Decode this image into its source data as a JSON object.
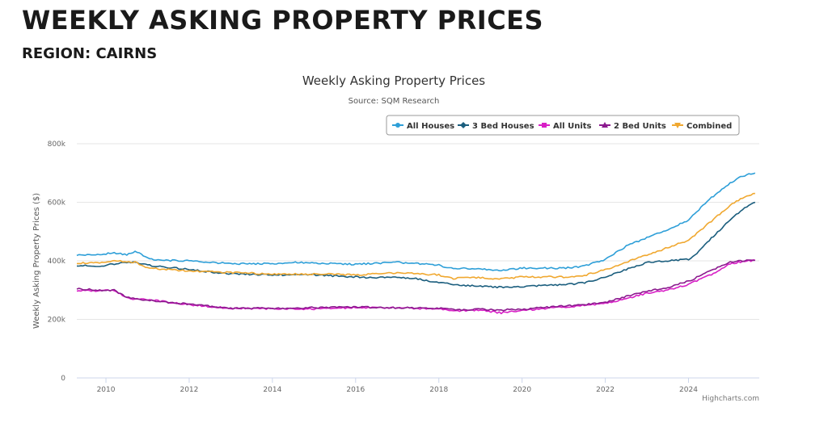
{
  "header": {
    "title": "WEEKLY ASKING PROPERTY PRICES",
    "subtitle": "REGION: CAIRNS"
  },
  "chart_data": {
    "type": "line",
    "title": "Weekly Asking Property Prices",
    "subtitle": "Source: SQM Research",
    "xlabel": "",
    "ylabel": "Weekly Asking Property Prices ($)",
    "credits": "Highcharts.com",
    "xlim": [
      2009.3,
      2025.7
    ],
    "ylim": [
      0,
      800000
    ],
    "x_ticks": [
      2010,
      2012,
      2014,
      2016,
      2018,
      2020,
      2022,
      2024
    ],
    "x_tick_labels": [
      "2010",
      "2012",
      "2014",
      "2016",
      "2018",
      "2020",
      "2022",
      "2024"
    ],
    "y_ticks": [
      0,
      200000,
      400000,
      600000,
      800000
    ],
    "y_tick_labels": [
      "0",
      "200k",
      "400k",
      "600k",
      "800k"
    ],
    "grid": "horizontal",
    "legend_position": "top-right",
    "series": [
      {
        "name": "All Houses",
        "color": "#2e9fd8",
        "x": [
          2009.3,
          2009.8,
          2010.2,
          2010.5,
          2010.7,
          2011.0,
          2011.2,
          2012.0,
          2013.0,
          2014.0,
          2014.5,
          2015.0,
          2016.0,
          2016.5,
          2017.0,
          2017.5,
          2018.0,
          2018.3,
          2019.0,
          2019.5,
          2020.0,
          2020.5,
          2021.0,
          2021.5,
          2022.0,
          2022.5,
          2023.0,
          2023.5,
          2024.0,
          2024.5,
          2025.0,
          2025.3,
          2025.6
        ],
        "values": [
          420000,
          420000,
          428000,
          420000,
          432000,
          412000,
          402000,
          400000,
          390000,
          390000,
          395000,
          392000,
          388000,
          392000,
          395000,
          390000,
          385000,
          375000,
          372000,
          368000,
          375000,
          375000,
          375000,
          382000,
          405000,
          450000,
          480000,
          505000,
          540000,
          610000,
          665000,
          690000,
          700000
        ]
      },
      {
        "name": "3 Bed Houses",
        "color": "#1b5e7e",
        "x": [
          2009.3,
          2009.8,
          2010.2,
          2010.7,
          2011.0,
          2012.0,
          2013.0,
          2014.0,
          2015.0,
          2016.0,
          2016.5,
          2017.0,
          2017.5,
          2018.0,
          2018.5,
          2019.0,
          2019.5,
          2020.0,
          2020.5,
          2021.0,
          2021.5,
          2022.0,
          2022.5,
          2023.0,
          2023.5,
          2024.0,
          2024.2,
          2024.5,
          2025.0,
          2025.3,
          2025.6
        ],
        "values": [
          385000,
          380000,
          390000,
          395000,
          385000,
          370000,
          355000,
          352000,
          352000,
          345000,
          342000,
          345000,
          338000,
          325000,
          318000,
          312000,
          310000,
          312000,
          315000,
          318000,
          325000,
          345000,
          370000,
          395000,
          400000,
          405000,
          425000,
          470000,
          540000,
          575000,
          600000
        ]
      },
      {
        "name": "All Units",
        "color": "#d81fc6",
        "x": [
          2009.3,
          2009.8,
          2010.2,
          2010.5,
          2011.0,
          2012.0,
          2013.0,
          2014.0,
          2015.0,
          2016.0,
          2017.0,
          2018.0,
          2018.5,
          2019.0,
          2019.5,
          2020.0,
          2020.5,
          2021.0,
          2021.5,
          2022.0,
          2022.5,
          2023.0,
          2023.5,
          2024.0,
          2024.5,
          2025.0,
          2025.3,
          2025.6
        ],
        "values": [
          298000,
          298000,
          300000,
          272000,
          268000,
          250000,
          238000,
          236000,
          236000,
          240000,
          240000,
          235000,
          230000,
          232000,
          222000,
          232000,
          236000,
          242000,
          248000,
          255000,
          270000,
          290000,
          300000,
          320000,
          350000,
          390000,
          398000,
          402000
        ]
      },
      {
        "name": "2 Bed Units",
        "color": "#8b1a8e",
        "x": [
          2009.3,
          2009.8,
          2010.2,
          2010.5,
          2011.0,
          2012.0,
          2013.0,
          2014.0,
          2015.0,
          2016.0,
          2017.0,
          2018.0,
          2018.5,
          2019.0,
          2019.5,
          2020.0,
          2020.5,
          2021.0,
          2021.5,
          2022.0,
          2022.5,
          2023.0,
          2023.5,
          2024.0,
          2024.5,
          2025.0,
          2025.3,
          2025.6
        ],
        "values": [
          305000,
          300000,
          300000,
          275000,
          265000,
          252000,
          238000,
          238000,
          240000,
          242000,
          240000,
          238000,
          232000,
          235000,
          232000,
          235000,
          240000,
          245000,
          250000,
          258000,
          278000,
          295000,
          310000,
          330000,
          365000,
          395000,
          400000,
          402000
        ]
      },
      {
        "name": "Combined",
        "color": "#f0a830",
        "x": [
          2009.3,
          2009.8,
          2010.2,
          2010.7,
          2011.0,
          2012.0,
          2013.0,
          2014.0,
          2015.0,
          2016.0,
          2016.5,
          2017.0,
          2017.5,
          2018.0,
          2018.3,
          2019.0,
          2019.5,
          2020.0,
          2020.5,
          2021.0,
          2021.5,
          2022.0,
          2022.5,
          2023.0,
          2023.5,
          2024.0,
          2024.5,
          2025.0,
          2025.3,
          2025.6
        ],
        "values": [
          393000,
          392000,
          400000,
          395000,
          375000,
          365000,
          360000,
          355000,
          355000,
          352000,
          355000,
          360000,
          355000,
          352000,
          340000,
          342000,
          338000,
          345000,
          345000,
          345000,
          350000,
          370000,
          395000,
          420000,
          445000,
          470000,
          530000,
          590000,
          615000,
          630000
        ]
      }
    ]
  }
}
